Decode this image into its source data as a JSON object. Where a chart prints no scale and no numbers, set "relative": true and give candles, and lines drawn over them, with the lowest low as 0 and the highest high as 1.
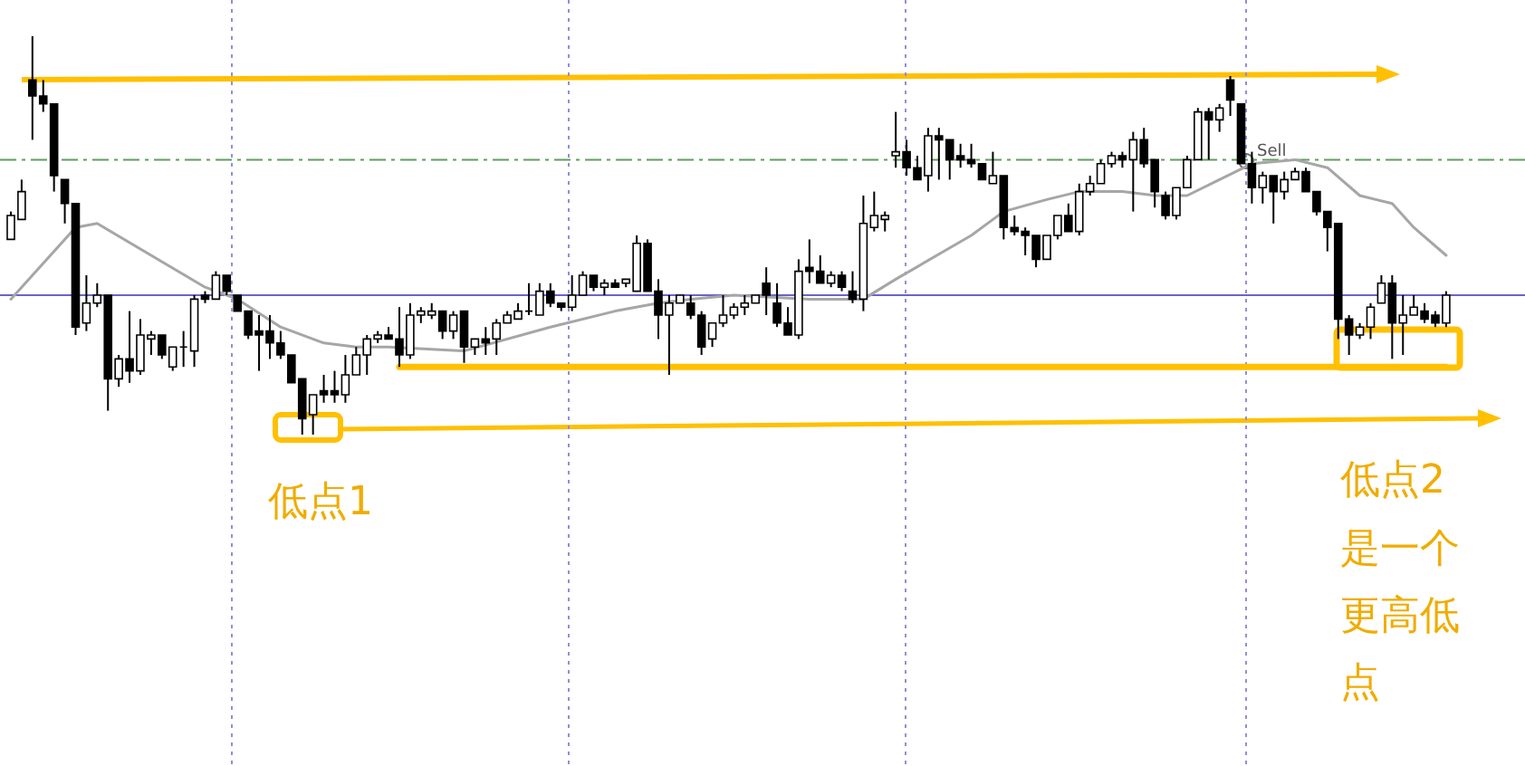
{
  "chart_data": {
    "type": "candlestick",
    "relative": true,
    "categories": [
      null,
      null,
      null,
      null,
      null,
      null,
      null,
      null,
      null,
      null,
      null,
      null,
      null,
      null,
      null,
      null,
      null,
      null,
      null,
      null,
      null,
      null,
      null,
      null,
      null,
      null,
      null,
      null,
      null,
      null,
      null,
      null,
      null,
      null,
      null,
      null,
      null,
      null,
      null,
      null,
      null,
      null,
      null,
      null,
      null,
      null,
      null,
      null,
      null,
      null,
      null,
      null,
      null,
      null,
      null,
      null,
      null,
      null,
      null,
      null,
      null,
      null,
      null,
      null,
      null,
      null,
      null,
      null,
      null,
      null,
      null,
      null,
      null,
      null,
      null,
      null,
      null,
      null,
      null,
      null,
      null,
      null,
      null,
      null,
      null,
      null,
      null,
      null,
      null,
      null,
      null,
      null,
      null,
      null,
      null,
      null,
      null,
      null,
      null,
      null,
      null,
      null,
      null,
      null,
      null,
      null,
      null,
      null,
      null,
      null,
      null,
      null,
      null,
      null,
      null,
      null,
      null,
      null,
      null,
      null,
      null,
      null,
      null,
      null,
      null,
      null,
      null,
      null,
      null,
      null,
      null,
      null,
      null,
      null
    ],
    "ohlc": [
      [
        0.49,
        0.56,
        0.49,
        0.55
      ],
      [
        0.54,
        0.64,
        0.54,
        0.61
      ],
      [
        0.89,
        1,
        0.74,
        0.85
      ],
      [
        0.85,
        0.89,
        0.81,
        0.83
      ],
      [
        0.83,
        0.83,
        0.61,
        0.65
      ],
      [
        0.64,
        0.64,
        0.53,
        0.58
      ],
      [
        0.58,
        0.58,
        0.25,
        0.27
      ],
      [
        0.28,
        0.4,
        0.26,
        0.33
      ],
      [
        0.33,
        0.38,
        0.32,
        0.35
      ],
      [
        0.35,
        0.35,
        0.06,
        0.14
      ],
      [
        0.14,
        0.2,
        0.12,
        0.19
      ],
      [
        0.19,
        0.31,
        0.13,
        0.16
      ],
      [
        0.16,
        0.29,
        0.15,
        0.25
      ],
      [
        0.24,
        0.26,
        0.2,
        0.25
      ],
      [
        0.25,
        0.25,
        0.19,
        0.2
      ],
      [
        0.17,
        0.22,
        0.16,
        0.22
      ],
      [
        0.22,
        0.26,
        0.17,
        0.22
      ],
      [
        0.21,
        0.35,
        0.17,
        0.34
      ],
      [
        0.35,
        0.36,
        0.33,
        0.34
      ],
      [
        0.34,
        0.41,
        0.34,
        0.4
      ],
      [
        0.4,
        0.4,
        0.35,
        0.36
      ],
      [
        0.35,
        0.35,
        0.31,
        0.31
      ],
      [
        0.31,
        0.31,
        0.24,
        0.25
      ],
      [
        0.26,
        0.3,
        0.16,
        0.25
      ],
      [
        0.26,
        0.3,
        0.19,
        0.23
      ],
      [
        0.23,
        0.26,
        0.19,
        0.2
      ],
      [
        0.2,
        0.2,
        0.13,
        0.13
      ],
      [
        0.14,
        0.14,
        0,
        0.04
      ],
      [
        0.05,
        0.1,
        0,
        0.1
      ],
      [
        0.11,
        0.15,
        0.08,
        0.1
      ],
      [
        0.11,
        0.16,
        0.08,
        0.1
      ],
      [
        0.1,
        0.2,
        0.08,
        0.15
      ],
      [
        0.15,
        0.22,
        0.15,
        0.2
      ],
      [
        0.2,
        0.25,
        0.15,
        0.24
      ],
      [
        0.24,
        0.26,
        0.23,
        0.25
      ],
      [
        0.25,
        0.27,
        0.24,
        0.24
      ],
      [
        0.24,
        0.32,
        0.17,
        0.2
      ],
      [
        0.2,
        0.33,
        0.19,
        0.3
      ],
      [
        0.3,
        0.32,
        0.28,
        0.31
      ],
      [
        0.3,
        0.33,
        0.29,
        0.31
      ],
      [
        0.31,
        0.31,
        0.24,
        0.26
      ],
      [
        0.26,
        0.31,
        0.24,
        0.3
      ],
      [
        0.31,
        0.31,
        0.18,
        0.22
      ],
      [
        0.22,
        0.24,
        0.2,
        0.24
      ],
      [
        0.24,
        0.27,
        0.2,
        0.23
      ],
      [
        0.24,
        0.29,
        0.2,
        0.28
      ],
      [
        0.28,
        0.31,
        0.28,
        0.3
      ],
      [
        0.29,
        0.33,
        0.29,
        0.31
      ],
      [
        0.31,
        0.38,
        0.3,
        0.31
      ],
      [
        0.3,
        0.38,
        0.3,
        0.36
      ],
      [
        0.36,
        0.38,
        0.32,
        0.33
      ],
      [
        0.33,
        0.33,
        0.31,
        0.32
      ],
      [
        0.32,
        0.4,
        0.31,
        0.35
      ],
      [
        0.35,
        0.41,
        0.35,
        0.4
      ],
      [
        0.4,
        0.4,
        0.36,
        0.37
      ],
      [
        0.37,
        0.39,
        0.35,
        0.38
      ],
      [
        0.38,
        0.39,
        0.37,
        0.37
      ],
      [
        0.38,
        0.39,
        0.37,
        0.39
      ],
      [
        0.36,
        0.5,
        0.36,
        0.48
      ],
      [
        0.48,
        0.49,
        0.36,
        0.36
      ],
      [
        0.36,
        0.39,
        0.24,
        0.3
      ],
      [
        0.3,
        0.35,
        0.15,
        0.33
      ],
      [
        0.33,
        0.35,
        0.33,
        0.35
      ],
      [
        0.33,
        0.35,
        0.29,
        0.3
      ],
      [
        0.3,
        0.31,
        0.2,
        0.22
      ],
      [
        0.24,
        0.28,
        0.22,
        0.28
      ],
      [
        0.28,
        0.35,
        0.27,
        0.3
      ],
      [
        0.3,
        0.33,
        0.29,
        0.32
      ],
      [
        0.32,
        0.35,
        0.3,
        0.33
      ],
      [
        0.33,
        0.35,
        0.33,
        0.35
      ],
      [
        0.38,
        0.42,
        0.3,
        0.35
      ],
      [
        0.33,
        0.38,
        0.27,
        0.28
      ],
      [
        0.28,
        0.32,
        0.25,
        0.25
      ],
      [
        0.25,
        0.44,
        0.24,
        0.41
      ],
      [
        0.42,
        0.49,
        0.38,
        0.41
      ],
      [
        0.41,
        0.45,
        0.38,
        0.38
      ],
      [
        0.38,
        0.41,
        0.37,
        0.4
      ],
      [
        0.4,
        0.41,
        0.36,
        0.37
      ],
      [
        0.36,
        0.41,
        0.33,
        0.34
      ],
      [
        0.34,
        0.6,
        0.31,
        0.53
      ],
      [
        0.52,
        0.61,
        0.51,
        0.55
      ],
      [
        0.54,
        0.56,
        0.51,
        0.55
      ],
      [
        0.7,
        0.81,
        0.67,
        0.71
      ],
      [
        0.71,
        0.74,
        0.65,
        0.67
      ],
      [
        0.67,
        0.7,
        0.64,
        0.64
      ],
      [
        0.65,
        0.77,
        0.61,
        0.75
      ],
      [
        0.75,
        0.77,
        0.64,
        0.74
      ],
      [
        0.74,
        0.74,
        0.64,
        0.69
      ],
      [
        0.7,
        0.73,
        0.67,
        0.69
      ],
      [
        0.69,
        0.73,
        0.67,
        0.68
      ],
      [
        0.68,
        0.68,
        0.64,
        0.64
      ],
      [
        0.63,
        0.71,
        0.63,
        0.65
      ],
      [
        0.65,
        0.65,
        0.49,
        0.52
      ],
      [
        0.52,
        0.55,
        0.5,
        0.51
      ],
      [
        0.51,
        0.52,
        0.45,
        0.5
      ],
      [
        0.5,
        0.5,
        0.42,
        0.44
      ],
      [
        0.44,
        0.5,
        0.44,
        0.5
      ],
      [
        0.5,
        0.55,
        0.49,
        0.55
      ],
      [
        0.55,
        0.58,
        0.51,
        0.51
      ],
      [
        0.51,
        0.63,
        0.5,
        0.61
      ],
      [
        0.61,
        0.65,
        0.6,
        0.63
      ],
      [
        0.63,
        0.69,
        0.63,
        0.68
      ],
      [
        0.68,
        0.71,
        0.67,
        0.7
      ],
      [
        0.7,
        0.71,
        0.67,
        0.69
      ],
      [
        0.69,
        0.76,
        0.56,
        0.74
      ],
      [
        0.74,
        0.77,
        0.67,
        0.68
      ],
      [
        0.69,
        0.69,
        0.57,
        0.61
      ],
      [
        0.6,
        0.61,
        0.54,
        0.55
      ],
      [
        0.55,
        0.62,
        0.54,
        0.62
      ],
      [
        0.62,
        0.7,
        0.62,
        0.69
      ],
      [
        0.69,
        0.82,
        0.69,
        0.81
      ],
      [
        0.81,
        0.82,
        0.69,
        0.79
      ],
      [
        0.79,
        0.83,
        0.76,
        0.82
      ],
      [
        0.89,
        0.9,
        0.8,
        0.84
      ],
      [
        0.83,
        0.83,
        0.68,
        0.68
      ],
      [
        0.68,
        0.71,
        0.58,
        0.62
      ],
      [
        0.62,
        0.66,
        0.58,
        0.65
      ],
      [
        0.65,
        0.65,
        0.53,
        0.61
      ],
      [
        0.61,
        0.66,
        0.59,
        0.64
      ],
      [
        0.64,
        0.67,
        0.64,
        0.66
      ],
      [
        0.66,
        0.67,
        0.61,
        0.61
      ],
      [
        0.61,
        0.61,
        0.55,
        0.56
      ],
      [
        0.56,
        0.56,
        0.46,
        0.52
      ],
      [
        0.53,
        0.53,
        0.24,
        0.29
      ],
      [
        0.29,
        0.3,
        0.2,
        0.25
      ],
      [
        0.25,
        0.28,
        0.24,
        0.27
      ],
      [
        0.27,
        0.33,
        0.24,
        0.32
      ],
      [
        0.33,
        0.4,
        0.33,
        0.38
      ],
      [
        0.38,
        0.4,
        0.19,
        0.28
      ],
      [
        0.28,
        0.35,
        0.2,
        0.3
      ],
      [
        0.3,
        0.35,
        0.3,
        0.32
      ],
      [
        0.31,
        0.33,
        0.28,
        0.29
      ],
      [
        0.3,
        0.31,
        0.27,
        0.28
      ],
      [
        0.28,
        0.36,
        0.27,
        0.35
      ]
    ],
    "series": [
      {
        "type": "line",
        "color": "#ffc000",
        "values": [
          null,
          null,
          null,
          null,
          null,
          null,
          null,
          null,
          null,
          null,
          null,
          null,
          null,
          null,
          null,
          null,
          null,
          null,
          null,
          null,
          null,
          null,
          null,
          null,
          null,
          null,
          null,
          null,
          null,
          null,
          null,
          null,
          null,
          null,
          null,
          null,
          0.17,
          null,
          null,
          null,
          null,
          null,
          null,
          null,
          null,
          null,
          null,
          null,
          null,
          null,
          null,
          null,
          null,
          null,
          null,
          null,
          null,
          null,
          null,
          null,
          null,
          null,
          null,
          null,
          null,
          null,
          null,
          null,
          null,
          null,
          null,
          null,
          null,
          null,
          null,
          null,
          null,
          null,
          null,
          null,
          null,
          null,
          null,
          null,
          null,
          null,
          null,
          null,
          null,
          null,
          null,
          null,
          null,
          null,
          null,
          null,
          null,
          null,
          null,
          null,
          null,
          null,
          null,
          null,
          null,
          null,
          null,
          null,
          null,
          null,
          null,
          null,
          null,
          null,
          null,
          null,
          null,
          null,
          null,
          null,
          null,
          null,
          null,
          null,
          null,
          null,
          null,
          null,
          null,
          null,
          null,
          null,
          null,
          0.17
        ]
      },
      {
        "type": "line",
        "color": "#a6a6a6",
        "values": [
          0.34,
          null,
          null,
          null,
          null,
          null,
          0.52,
          null,
          0.53,
          null,
          null,
          null,
          null,
          null,
          null,
          null,
          null,
          null,
          0.37,
          null,
          null,
          0.34,
          null,
          null,
          null,
          0.27,
          null,
          null,
          null,
          0.23,
          null,
          null,
          0.22,
          null,
          null,
          0.22,
          null,
          null,
          null,
          null,
          null,
          null,
          0.21,
          null,
          null,
          null,
          null,
          null,
          null,
          null,
          0.27,
          null,
          null,
          null,
          null,
          null,
          0.31,
          null,
          null,
          null,
          0.33,
          null,
          null,
          0.34,
          null,
          null,
          null,
          0.35,
          null,
          null,
          null,
          null,
          null,
          null,
          0.34,
          null,
          null,
          null,
          null,
          0.34,
          null,
          null,
          0.39,
          null,
          null,
          null,
          null,
          null,
          null,
          0.5,
          null,
          null,
          0.56,
          null,
          null,
          null,
          0.59,
          null,
          null,
          0.61,
          null,
          null,
          null,
          0.61,
          null,
          null,
          0.6,
          null,
          null,
          0.6,
          null,
          null,
          0.64,
          null,
          null,
          0.68,
          null,
          null,
          null,
          0.69,
          null,
          null,
          0.67,
          null,
          null,
          0.6,
          null,
          null,
          0.58,
          null,
          0.52,
          null,
          null,
          0.45
        ]
      }
    ],
    "ref_lines": [
      {
        "axis": "y",
        "value": 0.35,
        "color": "#6a64c8",
        "line_style": "solid"
      },
      {
        "axis": "y",
        "value": 0.69,
        "color": "#5e9e5e",
        "line_style": "dashed"
      }
    ],
    "annotations": [
      "低点1",
      "低点2",
      "是一个更高低点",
      "Sell"
    ]
  }
}
